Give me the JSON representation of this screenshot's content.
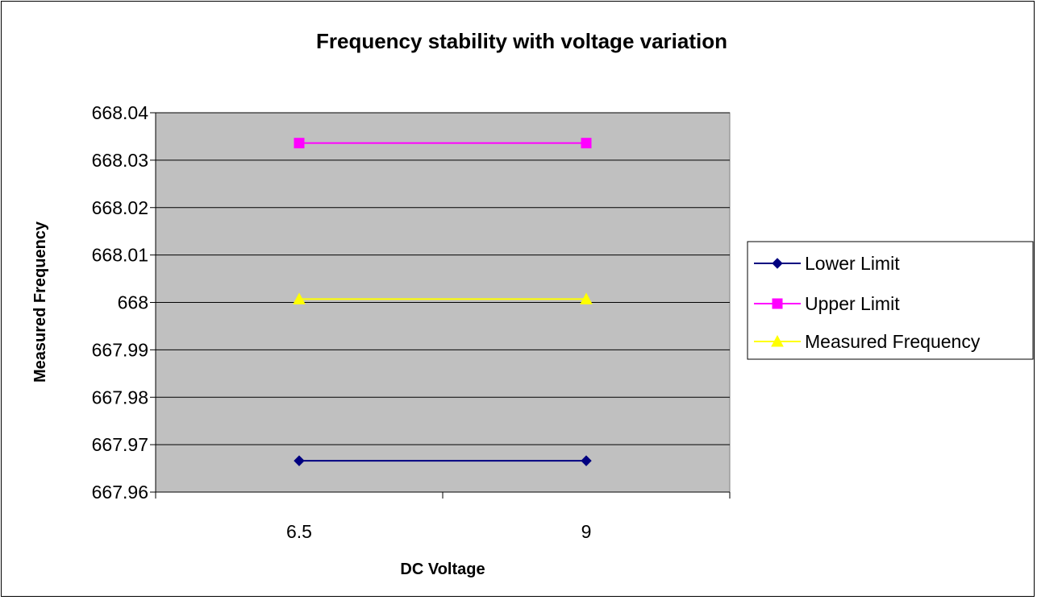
{
  "chart_data": {
    "type": "line",
    "title": "Frequency stability with voltage variation",
    "xlabel": "DC Voltage",
    "ylabel": "Measured Frequency",
    "categories": [
      "6.5",
      "9"
    ],
    "ylim": [
      667.96,
      668.04
    ],
    "yticks": [
      "667.96",
      "667.97",
      "667.98",
      "667.99",
      "668",
      "668.01",
      "668.02",
      "668.03",
      "668.04"
    ],
    "grid": true,
    "legend_position": "right",
    "plot_background": "#c0c0c0",
    "series": [
      {
        "name": "Lower Limit",
        "values": [
          667.9666,
          667.9666
        ],
        "color": "#000080",
        "marker": "diamond"
      },
      {
        "name": "Upper Limit",
        "values": [
          668.0336,
          668.0336
        ],
        "color": "#ff00ff",
        "marker": "square"
      },
      {
        "name": "Measured Frequency",
        "values": [
          668.0007,
          668.0007
        ],
        "color": "#ffff00",
        "marker": "triangle"
      }
    ]
  }
}
